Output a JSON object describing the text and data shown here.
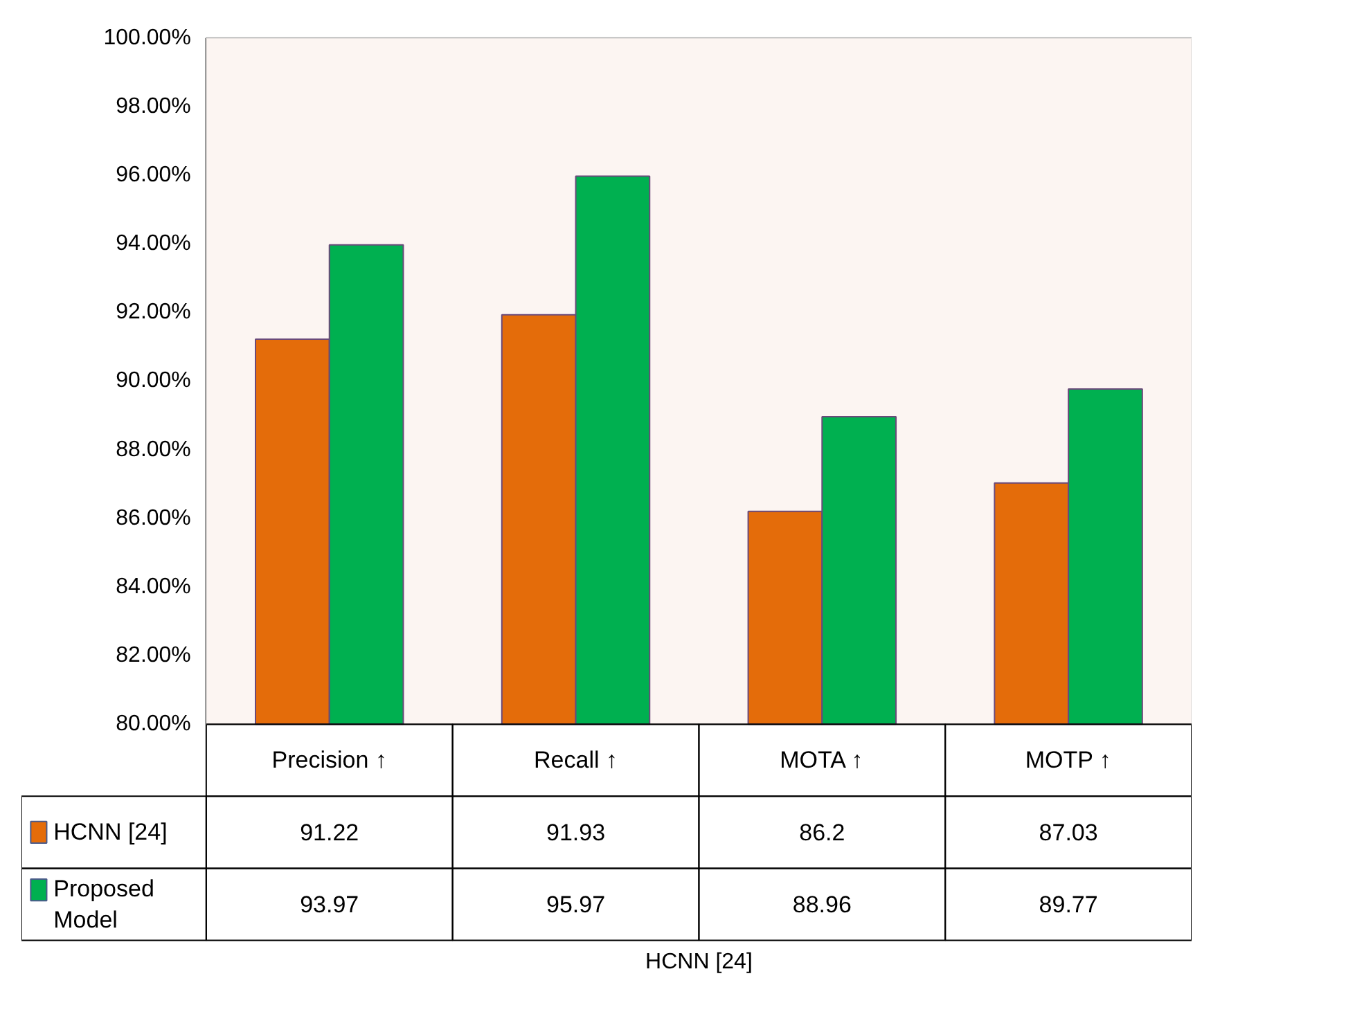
{
  "chart_data": {
    "type": "bar",
    "categories": [
      "Precision ↑",
      "Recall ↑",
      "MOTA ↑",
      "MOTP ↑"
    ],
    "series": [
      {
        "name": "HCNN [24]",
        "color": "#e46c0a",
        "values": [
          91.22,
          91.93,
          86.2,
          87.03
        ]
      },
      {
        "name": "Proposed Model",
        "color": "#00b050",
        "values": [
          93.97,
          95.97,
          88.96,
          89.77
        ]
      }
    ],
    "ylim": [
      80,
      100
    ],
    "yticks": [
      {
        "value": 80,
        "label": "80.00%"
      },
      {
        "value": 82,
        "label": "82.00%"
      },
      {
        "value": 84,
        "label": "84.00%"
      },
      {
        "value": 86,
        "label": "86.00%"
      },
      {
        "value": 88,
        "label": "88.00%"
      },
      {
        "value": 90,
        "label": "90.00%"
      },
      {
        "value": 92,
        "label": "92.00%"
      },
      {
        "value": 94,
        "label": "94.00%"
      },
      {
        "value": 96,
        "label": "96.00%"
      },
      {
        "value": 98,
        "label": "98.00%"
      },
      {
        "value": 100,
        "label": "100.00%"
      }
    ],
    "grid": "y",
    "data_labels": true,
    "legend": "left",
    "annotations": [
      "HCNN [24]"
    ]
  }
}
